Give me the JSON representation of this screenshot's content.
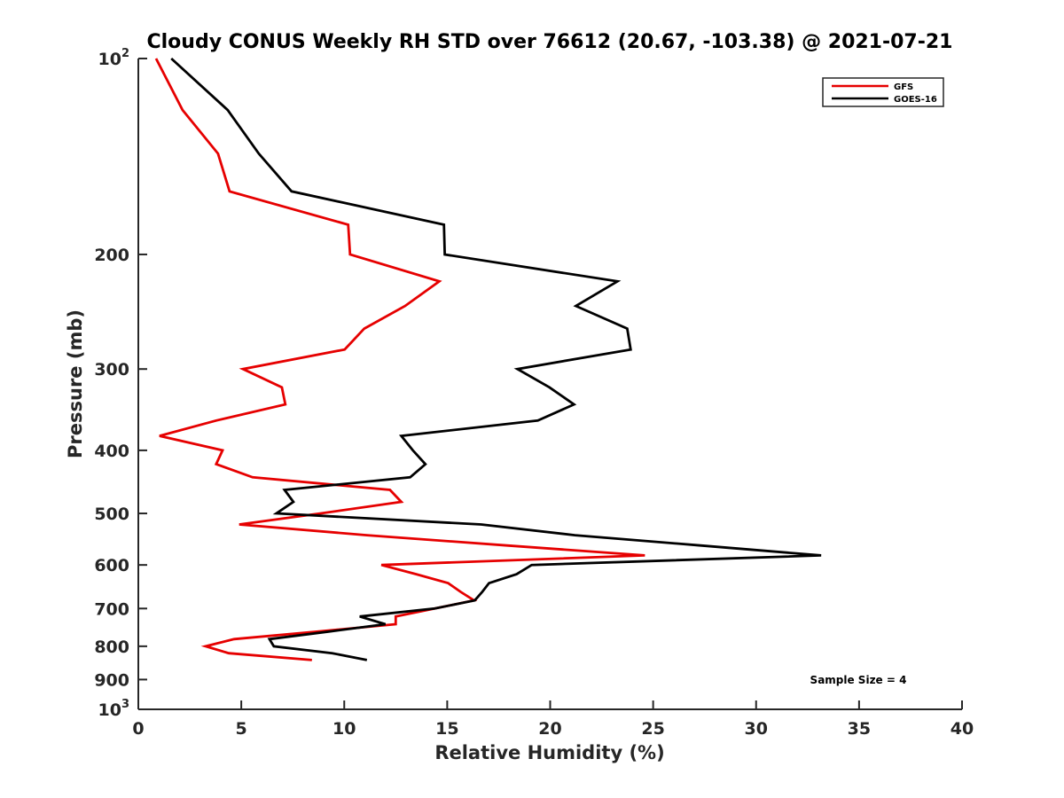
{
  "chart_data": {
    "type": "line",
    "title": "Cloudy CONUS Weekly RH STD over 76612 (20.67, -103.38) @ 2021-07-21",
    "xlabel": "Relative Humidity (%)",
    "ylabel": "Pressure (mb)",
    "xlim": [
      0,
      40
    ],
    "ylim": [
      100,
      1000
    ],
    "yscale": "log",
    "y_reversed": true,
    "grid": false,
    "legend_position": "top-right",
    "xticks": [
      0,
      5,
      10,
      15,
      20,
      25,
      30,
      35,
      40
    ],
    "xtick_labels": [
      "0",
      "5",
      "10",
      "15",
      "20",
      "25",
      "30",
      "35",
      "40"
    ],
    "yticks": [
      100,
      200,
      300,
      400,
      500,
      600,
      700,
      800,
      900,
      1000
    ],
    "ytick_labels": [
      {
        "base": "10",
        "exp": "2"
      },
      {
        "base": "200",
        "exp": ""
      },
      {
        "base": "300",
        "exp": ""
      },
      {
        "base": "400",
        "exp": ""
      },
      {
        "base": "500",
        "exp": ""
      },
      {
        "base": "600",
        "exp": ""
      },
      {
        "base": "700",
        "exp": ""
      },
      {
        "base": "800",
        "exp": ""
      },
      {
        "base": "900",
        "exp": ""
      },
      {
        "base": "10",
        "exp": "3"
      }
    ],
    "pressure_levels": [
      100,
      120,
      140,
      160,
      180,
      200,
      220,
      240,
      260,
      280,
      300,
      320,
      340,
      360,
      380,
      400,
      420,
      440,
      460,
      480,
      500,
      520,
      540,
      560,
      580,
      600,
      620,
      640,
      660,
      680,
      700,
      720,
      740,
      760,
      780,
      800,
      820,
      840
    ],
    "series": [
      {
        "name": "GFS",
        "color": "#e60000",
        "values": [
          0.86,
          2.15,
          3.87,
          4.43,
          10.19,
          10.28,
          14.62,
          12.95,
          10.97,
          10.02,
          5.08,
          6.97,
          7.14,
          3.78,
          1.03,
          4.09,
          3.78,
          5.55,
          12.22,
          12.77,
          8.86,
          4.9,
          11.1,
          17.9,
          24.6,
          11.8,
          13.5,
          15.05,
          15.65,
          16.3,
          14.4,
          12.5,
          12.5,
          8.6,
          4.65,
          3.27,
          4.39,
          8.43
        ]
      },
      {
        "name": "GOES-16",
        "color": "#000000",
        "values": [
          1.6,
          4.34,
          5.85,
          7.44,
          14.84,
          14.88,
          23.27,
          21.25,
          23.74,
          23.91,
          18.41,
          19.96,
          21.16,
          19.4,
          12.77,
          13.33,
          13.94,
          13.2,
          7.1,
          7.53,
          6.71,
          16.65,
          21.2,
          27.3,
          33.16,
          19.1,
          18.37,
          17.03,
          16.7,
          16.34,
          14.4,
          10.75,
          12.0,
          9.2,
          6.37,
          6.58,
          9.42,
          11.1
        ]
      }
    ],
    "annotations": [
      {
        "text": "Sample Size = 4",
        "position": "bottom-right"
      }
    ]
  }
}
